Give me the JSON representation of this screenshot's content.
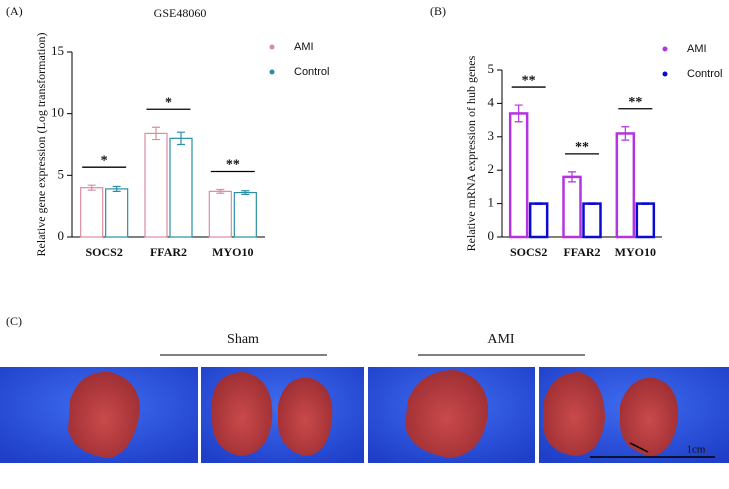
{
  "chart_data": [
    {
      "type": "bar",
      "label": "(A)",
      "title": "GSE48060",
      "y_label": "Relative gene expression (Log transformation)",
      "categories": [
        "SOCS2",
        "FFAR2",
        "MYO10"
      ],
      "series": [
        {
          "name": "AMI",
          "color": "#d98ea0",
          "values": [
            4.0,
            8.4,
            3.7
          ],
          "errors": [
            0.2,
            0.5,
            0.15
          ]
        },
        {
          "name": "Control",
          "color": "#2a8fa6",
          "values": [
            3.9,
            8.0,
            3.6
          ],
          "errors": [
            0.2,
            0.5,
            0.15
          ]
        }
      ],
      "annotations": [
        "*",
        "*",
        "**"
      ],
      "ylim": [
        0,
        15
      ],
      "yticks": [
        0,
        5,
        10,
        15
      ]
    },
    {
      "type": "bar",
      "label": "(B)",
      "y_label": "Relative mRNA expression of hub genes",
      "categories": [
        "SOCS2",
        "FFAR2",
        "MYO10"
      ],
      "series": [
        {
          "name": "AMI",
          "color": "#b434e0",
          "values": [
            3.7,
            1.8,
            3.1
          ],
          "errors": [
            0.25,
            0.15,
            0.2
          ]
        },
        {
          "name": "Control",
          "color": "#0a0ad0",
          "values": [
            1.0,
            1.0,
            1.0
          ],
          "errors": [
            0.02,
            0.02,
            0.02
          ]
        }
      ],
      "annotations": [
        "**",
        "**",
        "**"
      ],
      "ylim": [
        0,
        5
      ],
      "yticks": [
        0,
        1,
        2,
        3,
        4,
        5
      ]
    }
  ],
  "panel_c": {
    "label": "(C)",
    "groups": [
      "Sham",
      "AMI"
    ],
    "scale_bar": "1cm"
  }
}
